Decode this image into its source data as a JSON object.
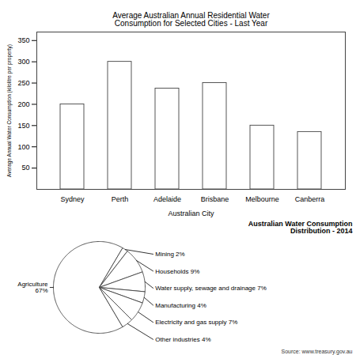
{
  "chart_data": [
    {
      "type": "bar",
      "title": "Average Australian Annual Residential Water\nConsumption for Selected Cities - Last Year",
      "xlabel": "Australian City",
      "ylabel": "Average Annual Water Consumption (kilolitre per property)",
      "categories": [
        "Sydney",
        "Perth",
        "Adelaide",
        "Brisbane",
        "Melbourne",
        "Canberra"
      ],
      "values": [
        200,
        300,
        237,
        250,
        150,
        135
      ],
      "color": "#ffffff",
      "ylim": [
        0,
        370
      ],
      "yticks": [
        50,
        100,
        150,
        200,
        250,
        300,
        350
      ],
      "grid": false
    },
    {
      "type": "pie",
      "title": "Australian Water Consumption\nDistribution - 2014",
      "caption": "Source: www.treasury.gov.au",
      "categories": [
        "Agriculture\n67%",
        "Mining 2%",
        "Households 9%",
        "Water supply, sewage and drainage 7%",
        "Manufacturing 4%",
        "Electricity and gas supply 7%",
        "Other industries 4%"
      ],
      "values": [
        67,
        2,
        9,
        7,
        4,
        7,
        4
      ],
      "color": "#ffffff"
    }
  ]
}
